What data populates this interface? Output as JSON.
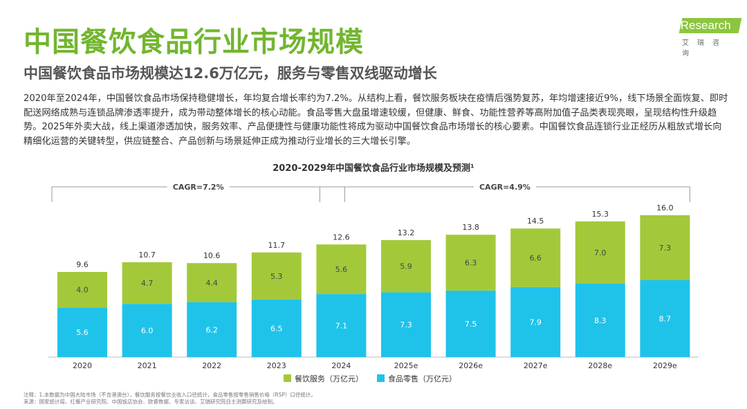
{
  "title": "中国餐饮食品行业市场规模",
  "subtitle": "中国餐饮食品市场规模达12.6万亿元，服务与零售双线驱动增长",
  "paragraph": "2020年至2024年，中国餐饮食品市场保持稳健增长，年均复合增长率约为7.2%。从结构上看，餐饮服务板块在疫情后强势复苏，年均增速接近9%，线下场景全面恢复、即时配送网络成熟与连锁品牌渗透率提升，成为带动整体增长的核心动能。食品零售大盘虽增速较缓，但健康、鲜食、功能性营养等高附加值子品类表现亮眼，呈现结构性升级趋势。2025年外卖大战，线上渠道渗透加快，服务效率、产品便捷性与健康功能性将成为驱动中国餐饮食品市场增长的核心要素。中国餐饮食品连锁行业正经历从粗放式增长向精细化运营的关键转型，供应链整合、产品创新与场景延伸正成为推动行业增长的三大增长引擎。",
  "logo": {
    "text": "iResearch",
    "cn": "艾瑞咨询"
  },
  "notes": {
    "note": "注释：1.本数据为中国大陆市场（不含港澳台），餐饮服务按餐饮业收入口径统计，食品零售按零售销售价格（RSP）口径统计。",
    "source": "来源：国家统计局、红餐产业研究院、中国饭店协会、欧睿数据、专家访谈、艾瑞研究院自主测算研究及绘制。"
  },
  "chart_data": {
    "type": "bar",
    "stacked": true,
    "title": "2020-2029年中国餐饮食品行业市场规模及预测¹",
    "categories": [
      "2020",
      "2021",
      "2022",
      "2023",
      "2024",
      "2025e",
      "2026e",
      "2027e",
      "2028e",
      "2029e"
    ],
    "series": [
      {
        "name": "食品零售（万亿元）",
        "color": "#1fc3ea",
        "values": [
          5.6,
          6.0,
          6.2,
          6.5,
          7.1,
          7.3,
          7.5,
          7.9,
          8.3,
          8.7
        ]
      },
      {
        "name": "餐饮服务（万亿元）",
        "color": "#a3c93a",
        "values": [
          4.0,
          4.7,
          4.4,
          5.3,
          5.6,
          5.9,
          6.3,
          6.6,
          7.0,
          7.3
        ]
      }
    ],
    "totals": [
      9.6,
      10.7,
      10.6,
      11.7,
      12.6,
      13.2,
      13.8,
      14.5,
      15.3,
      16.0
    ],
    "annotations": [
      {
        "label": "CAGR=7.2%",
        "from": "2020",
        "to": "2024"
      },
      {
        "label": "CAGR=4.9%",
        "from": "2024",
        "to": "2029e"
      }
    ],
    "legend_order": [
      "餐饮服务（万亿元）",
      "食品零售（万亿元）"
    ],
    "legend_position": "bottom",
    "ylim": [
      0,
      16
    ]
  }
}
